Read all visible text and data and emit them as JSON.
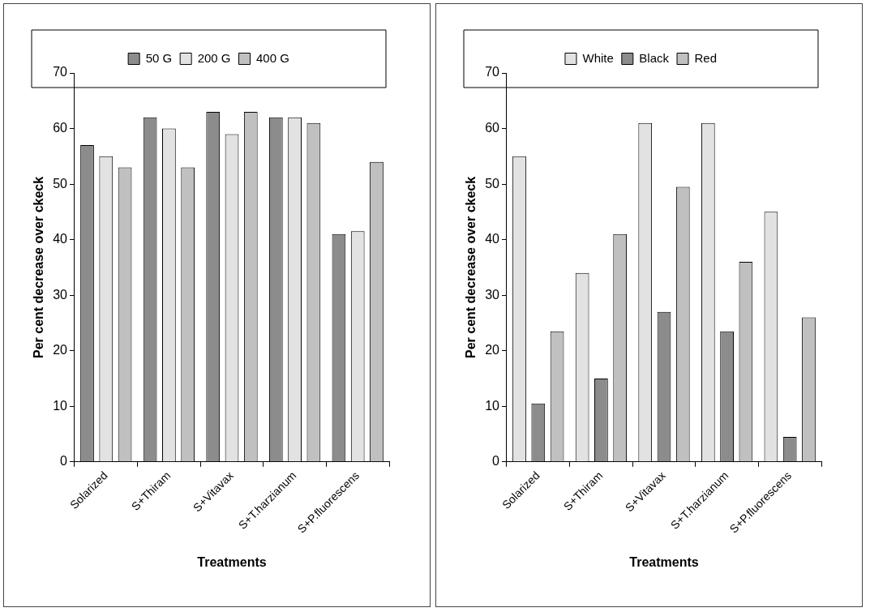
{
  "chart_data": [
    {
      "type": "bar",
      "xlabel": "Treatments",
      "ylabel": "Per cent decrease over ckeck",
      "categories": [
        "Solarized",
        "S+Thiram",
        "S+Vitavax",
        "S+T.harzianum",
        "S+P.fluorescens"
      ],
      "series": [
        {
          "name": "50 G",
          "color": "#8c8c8c",
          "values": [
            57,
            62,
            63,
            62,
            41
          ]
        },
        {
          "name": "200 G",
          "color": "#e2e2e2",
          "values": [
            55,
            60,
            59,
            62,
            41.5
          ]
        },
        {
          "name": "400 G",
          "color": "#c0c0c0",
          "values": [
            53,
            53,
            63,
            61,
            54
          ]
        }
      ],
      "ylim": [
        0,
        70
      ],
      "yticks": [
        0,
        10,
        20,
        30,
        40,
        50,
        60,
        70
      ],
      "grid": false,
      "legend": "top"
    },
    {
      "type": "bar",
      "xlabel": "Treatments",
      "ylabel": "Per cent decrease over ckeck",
      "categories": [
        "Solarized",
        "S+Thiram",
        "S+Vitavax",
        "S+T.harzianum",
        "S+P.fluorescens"
      ],
      "series": [
        {
          "name": "White",
          "color": "#e2e2e2",
          "values": [
            55,
            34,
            61,
            61,
            45
          ]
        },
        {
          "name": "Black",
          "color": "#8c8c8c",
          "values": [
            10.5,
            15,
            27,
            23.5,
            4.5
          ]
        },
        {
          "name": "Red",
          "color": "#c0c0c0",
          "values": [
            23.5,
            41,
            49.5,
            36,
            26
          ]
        }
      ],
      "ylim": [
        0,
        70
      ],
      "yticks": [
        0,
        10,
        20,
        30,
        40,
        50,
        60,
        70
      ],
      "grid": false,
      "legend": "top"
    }
  ]
}
